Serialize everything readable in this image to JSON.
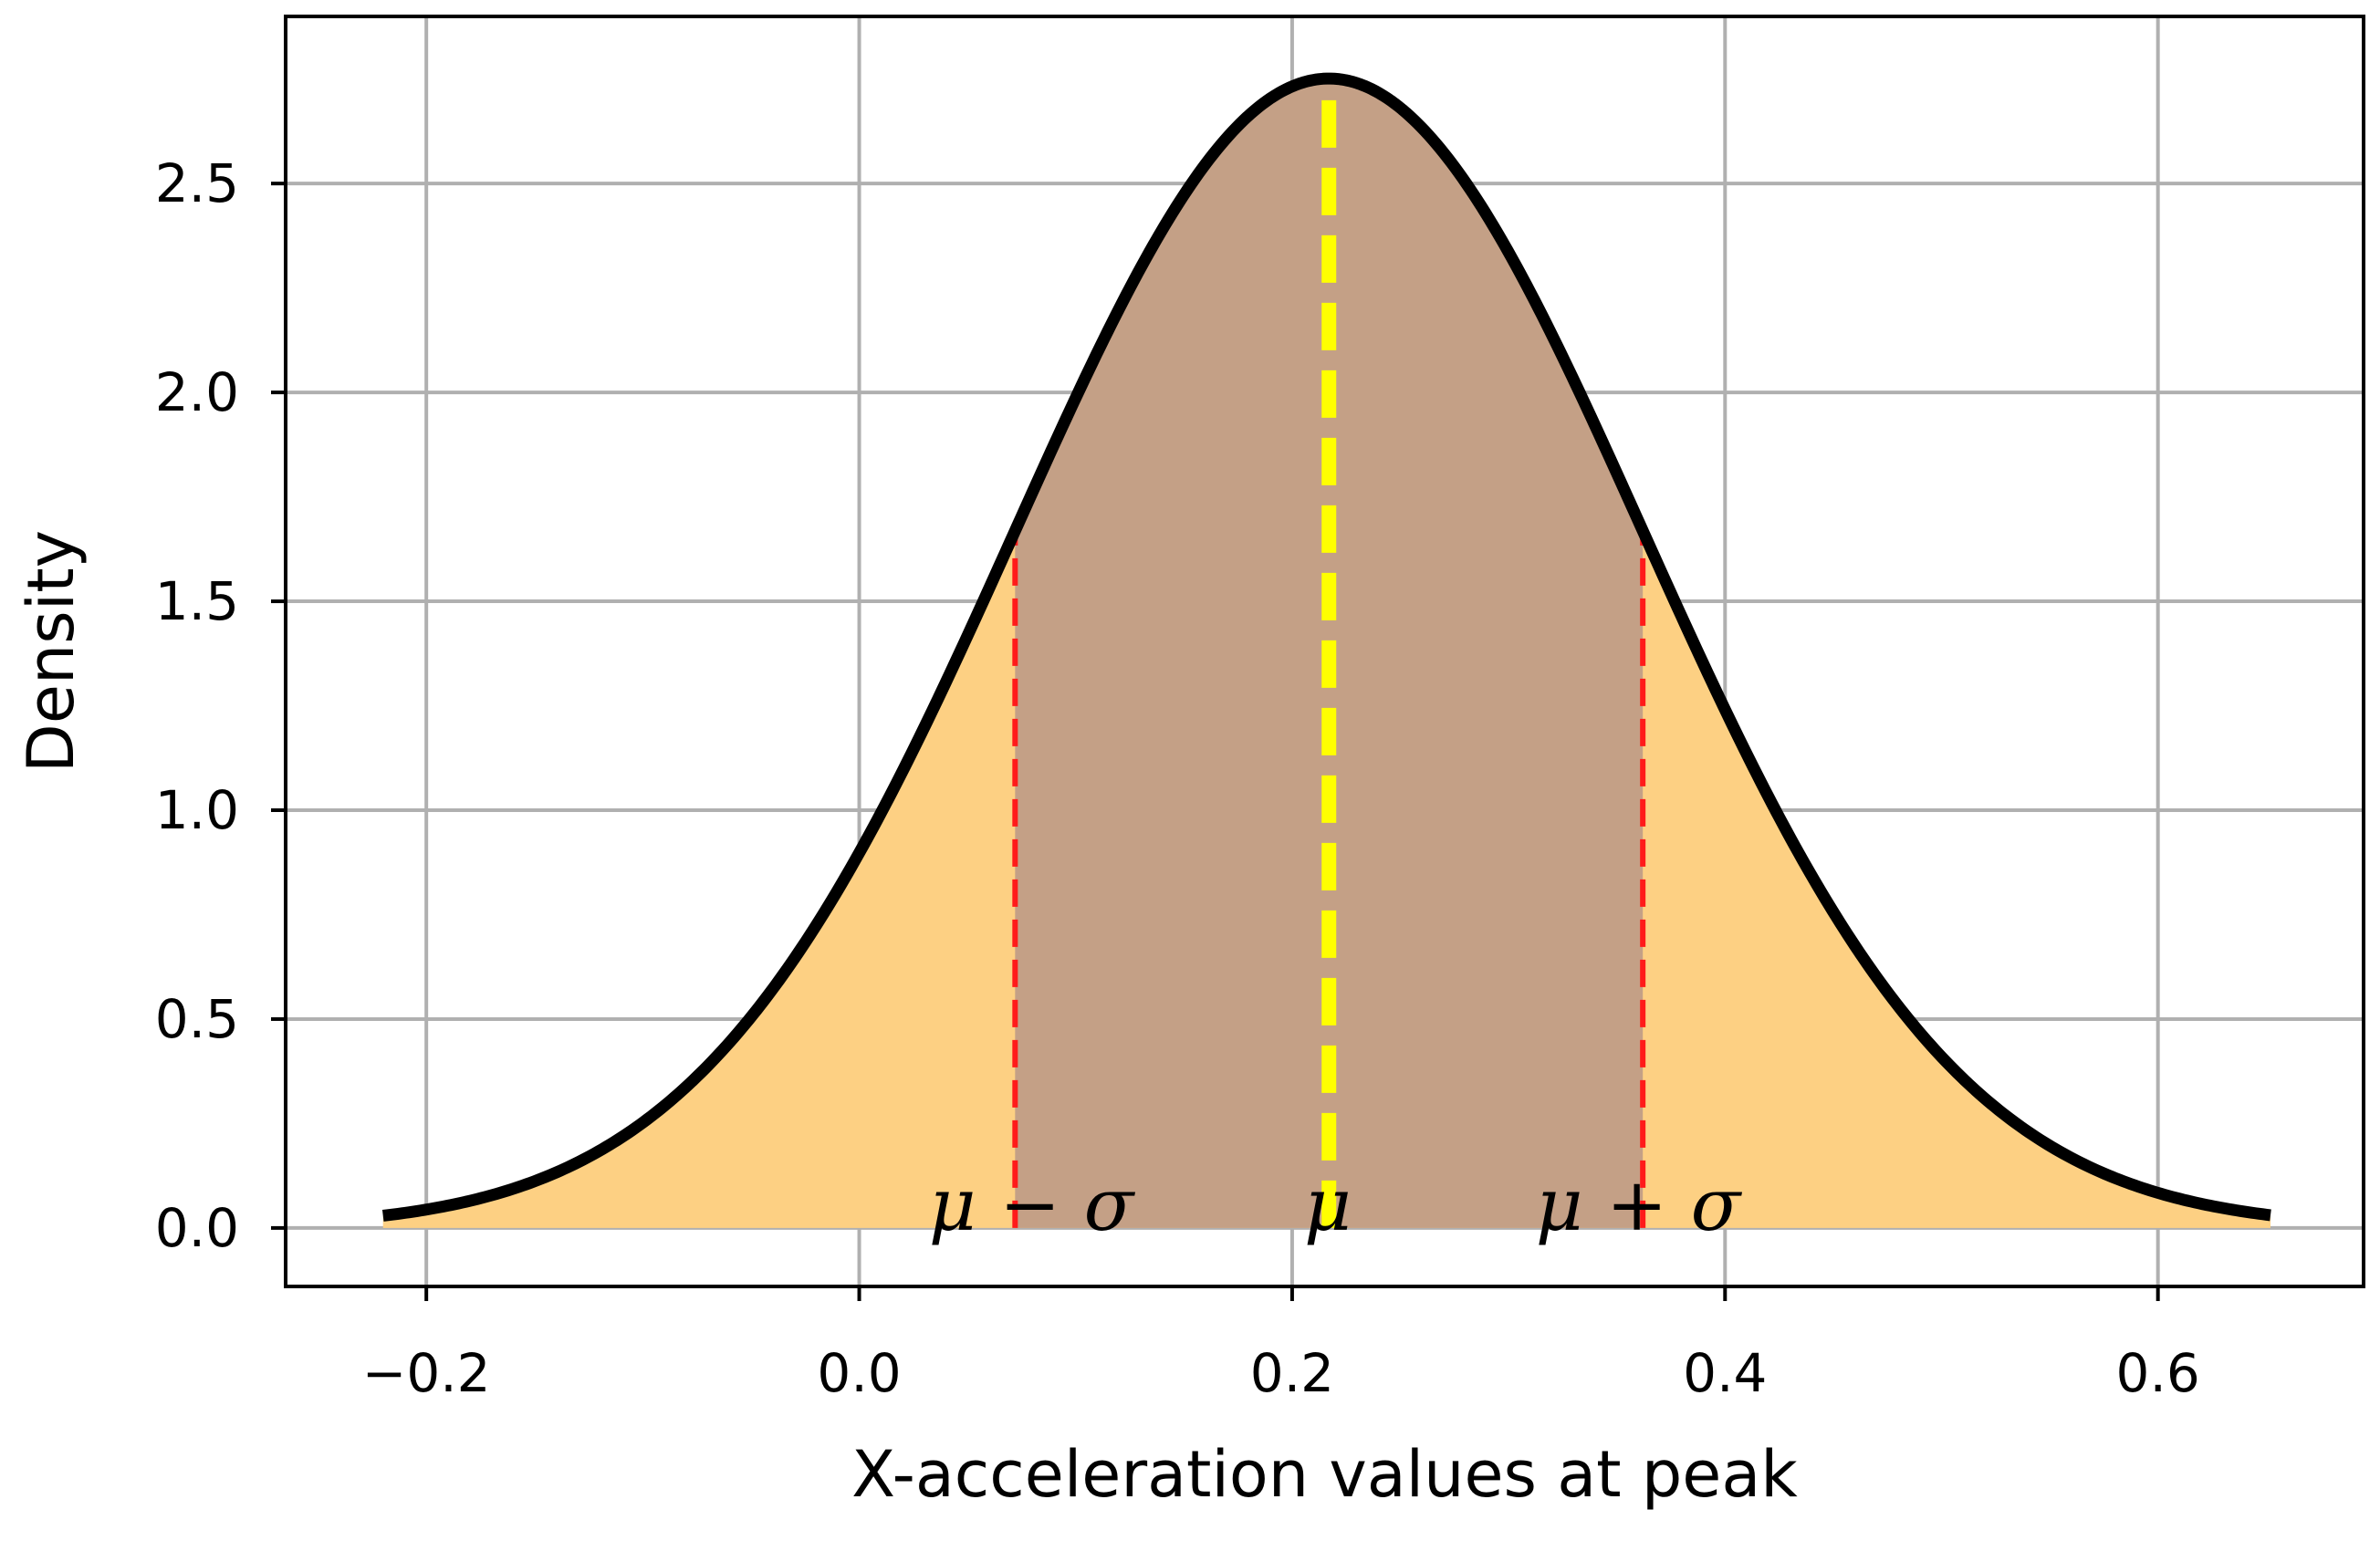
{
  "chart_data": {
    "type": "area",
    "title": "",
    "xlabel": "X-acceleration values at peak",
    "ylabel": "Density",
    "xlim": [
      -0.265,
      0.695
    ],
    "ylim": [
      -0.14,
      2.9
    ],
    "grid": true,
    "xticks": [
      {
        "value": -0.2,
        "label": "−0.2"
      },
      {
        "value": 0.0,
        "label": "0.0"
      },
      {
        "value": 0.2,
        "label": "0.2"
      },
      {
        "value": 0.4,
        "label": "0.4"
      },
      {
        "value": 0.6,
        "label": "0.6"
      }
    ],
    "yticks": [
      {
        "value": 0.0,
        "label": "0.0"
      },
      {
        "value": 0.5,
        "label": "0.5"
      },
      {
        "value": 1.0,
        "label": "1.0"
      },
      {
        "value": 1.5,
        "label": "1.5"
      },
      {
        "value": 2.0,
        "label": "2.0"
      },
      {
        "value": 2.5,
        "label": "2.5"
      }
    ],
    "distribution": {
      "kind": "normal",
      "mu": 0.217,
      "sigma": 0.145,
      "x_range": [
        -0.22,
        0.652
      ],
      "curve_color": "#000000"
    },
    "regions": [
      {
        "from": -0.22,
        "to": 0.652,
        "color": "#fdd083"
      },
      {
        "from": 0.072,
        "to": 0.362,
        "color": "#c4a086"
      }
    ],
    "vlines": [
      {
        "x": 0.072,
        "color": "#ff1a1a",
        "style": "dashed",
        "label": "μ − σ"
      },
      {
        "x": 0.217,
        "color": "#ffff00",
        "style": "dashed",
        "label": "μ"
      },
      {
        "x": 0.362,
        "color": "#ff1a1a",
        "style": "dashed",
        "label": "μ + σ"
      }
    ],
    "colors": {
      "grid": "#b0b0b0",
      "axes": "#000000"
    }
  }
}
